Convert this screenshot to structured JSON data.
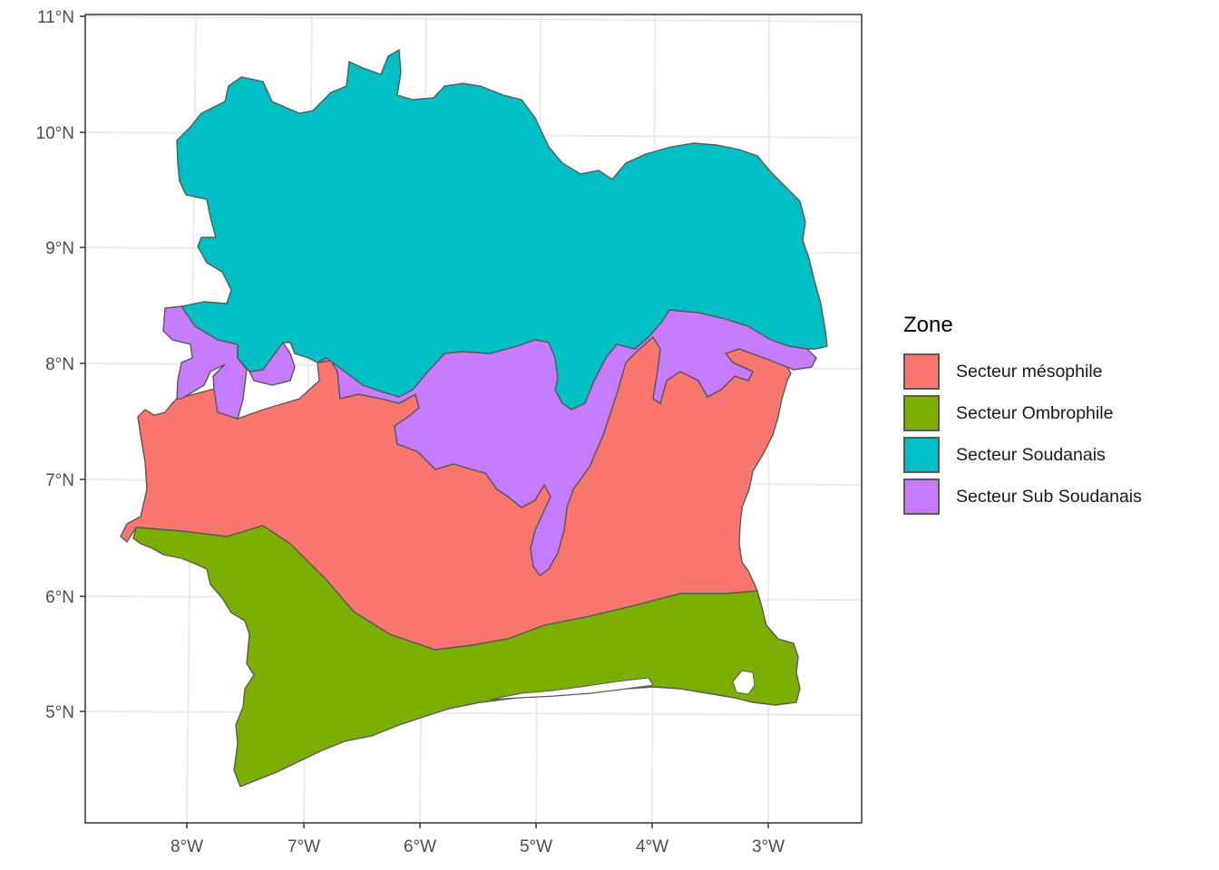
{
  "map": {
    "x_ticks": [
      "8°W",
      "7°W",
      "6°W",
      "5°W",
      "4°W",
      "3°W"
    ],
    "y_ticks": [
      "11°N",
      "10°N",
      "9°N",
      "8°N",
      "7°N",
      "6°N",
      "5°N"
    ],
    "grid": true
  },
  "legend": {
    "title": "Zone",
    "placement": "right",
    "items": [
      {
        "label": "Secteur mésophile",
        "color": "#F8766D"
      },
      {
        "label": "Secteur Ombrophile",
        "color": "#7CAE00"
      },
      {
        "label": "Secteur Soudanais",
        "color": "#00BFC4"
      },
      {
        "label": "Secteur Sub Soudanais",
        "color": "#C77CFF"
      }
    ]
  },
  "colors": {
    "border": "#595959",
    "grid": "#ebebeb",
    "panel_border": "#333333"
  }
}
